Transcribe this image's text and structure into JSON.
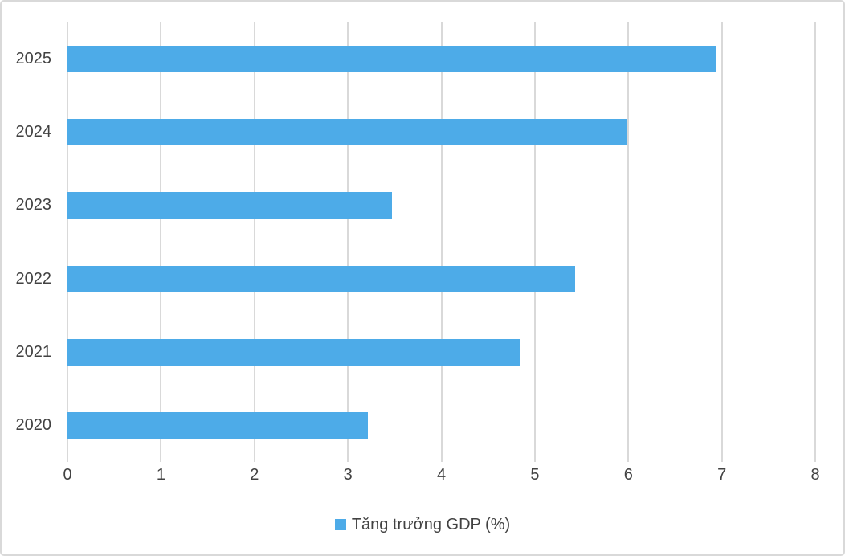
{
  "chart_data": {
    "type": "bar",
    "orientation": "horizontal",
    "title": "",
    "categories": [
      "2025",
      "2024",
      "2023",
      "2022",
      "2021",
      "2020"
    ],
    "series": [
      {
        "name": "Tăng trưởng GDP (%)",
        "values": [
          6.94,
          5.98,
          3.47,
          5.43,
          4.85,
          3.21
        ]
      }
    ],
    "xlabel": "",
    "ylabel": "",
    "xlim": [
      0,
      8
    ],
    "x_ticks": [
      0,
      1,
      2,
      3,
      4,
      5,
      6,
      7,
      8
    ],
    "grid": "vertical",
    "legend_position": "bottom-center",
    "bar_color": "#4dabe8",
    "gridline_color": "#d9d9d9",
    "label_color": "#424242"
  },
  "legend": {
    "label": "Tăng trưởng GDP (%)"
  }
}
